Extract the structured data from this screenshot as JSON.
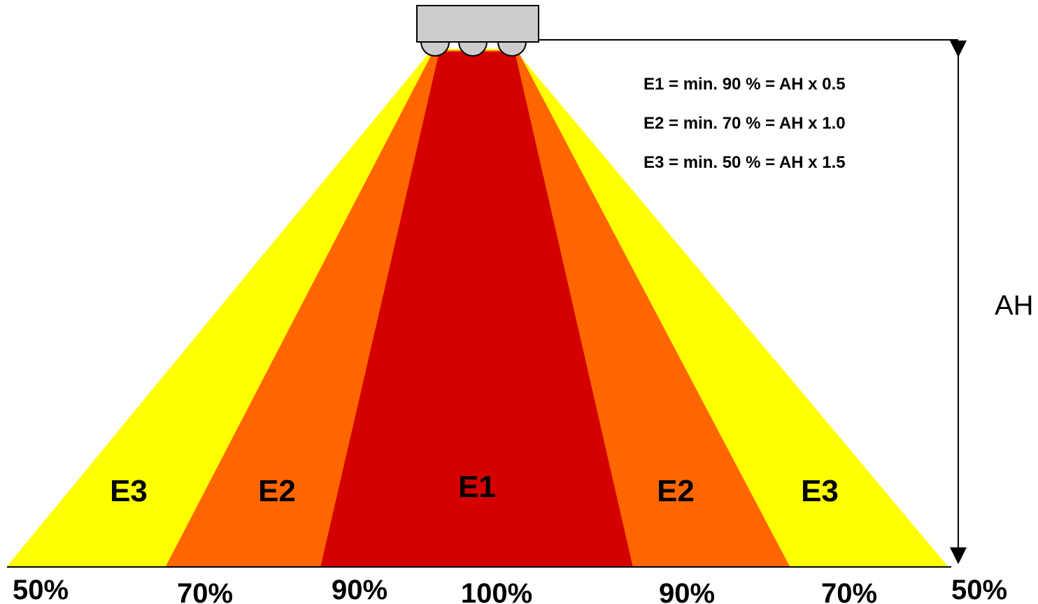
{
  "colors": {
    "e1_zone": "#d40000",
    "e2_zone": "#ff6600",
    "e3_zone": "#ffff00",
    "sensor_body": "#cccccc",
    "outline": "#000000",
    "background": "#ffffff"
  },
  "legend": {
    "e1": "E1 = min. 90 % = AH x 0.5",
    "e2": "E2 = min. 70 % = AH x 1.0",
    "e3": "E3 = min. 50 % = AH x 1.5"
  },
  "zones": {
    "left_e3": "E3",
    "left_e2": "E2",
    "center_e1": "E1",
    "right_e2": "E2",
    "right_e3": "E3"
  },
  "percentages": {
    "p1": "50%",
    "p2": "70%",
    "p3": "90%",
    "p4": "100%",
    "p5": "90%",
    "p6": "70%",
    "p7": "50%"
  },
  "height_label": "AH"
}
